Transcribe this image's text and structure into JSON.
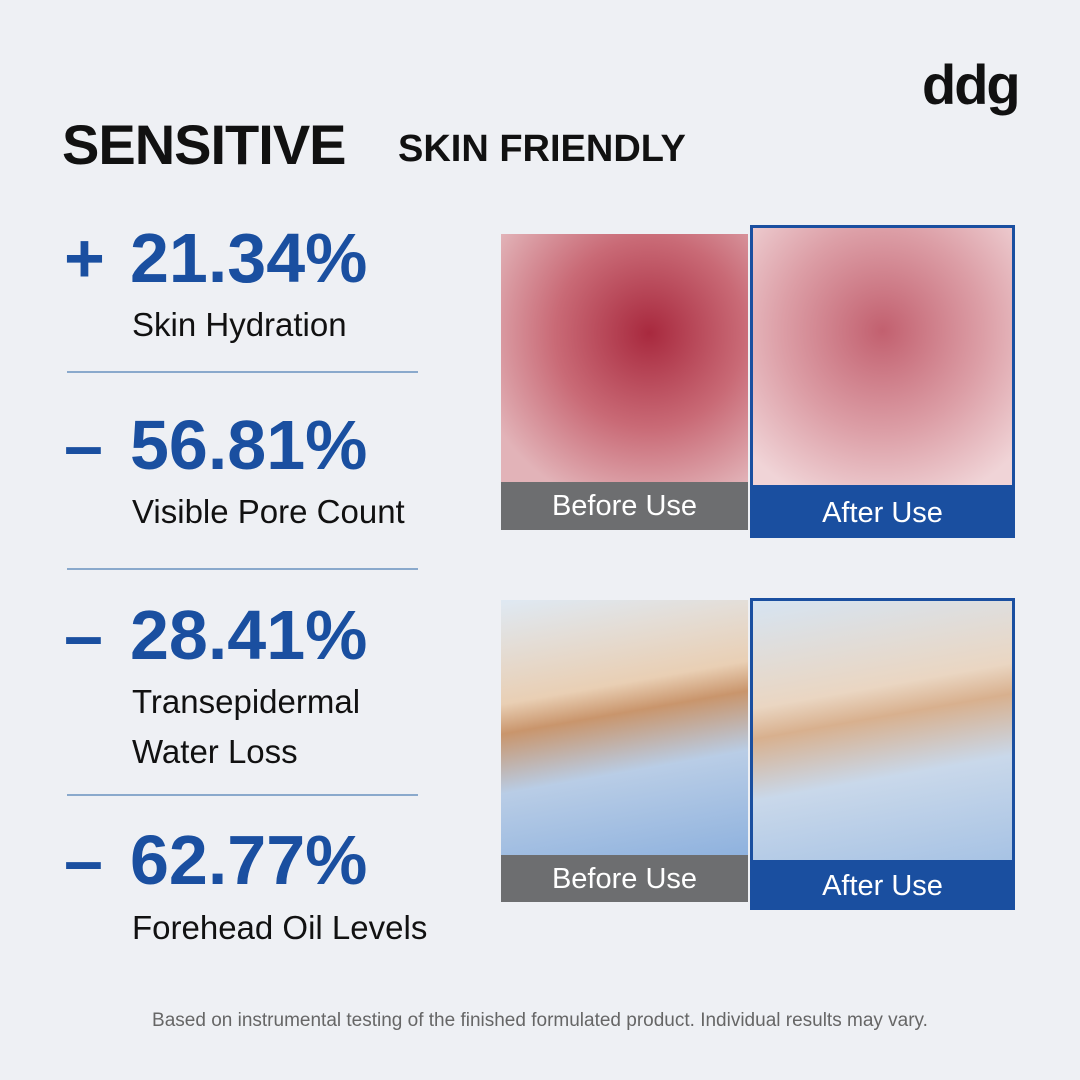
{
  "brand": "ddg",
  "header": {
    "title": "SENSITIVE",
    "subtitle": "SKIN FRIENDLY"
  },
  "stats": [
    {
      "sign": "+",
      "value": "21.34%",
      "label": [
        "Skin Hydration"
      ]
    },
    {
      "sign": "–",
      "value": "56.81%",
      "label": [
        "Visible Pore Count"
      ]
    },
    {
      "sign": "–",
      "value": "28.41%",
      "label": [
        "Transepidermal",
        "Water Loss"
      ]
    },
    {
      "sign": "–",
      "value": "62.77%",
      "label": [
        "Forehead Oil Levels"
      ]
    }
  ],
  "comparisons": [
    {
      "before": "Before Use",
      "after": "After Use"
    },
    {
      "before": "Before Use",
      "after": "After Use"
    }
  ],
  "footnote": "Based on instrumental testing of the finished formulated product. Individual results may vary."
}
